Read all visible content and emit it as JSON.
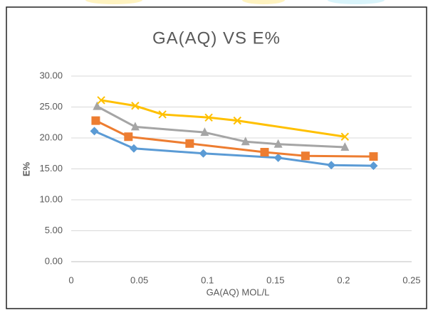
{
  "chart_data": {
    "type": "scatter-line",
    "title": "GA(AQ) VS E%",
    "x_label": "GA(AQ) MOL/L",
    "y_label": "E%",
    "xlim": [
      0,
      0.25
    ],
    "xticks": [
      0,
      0.05,
      0.1,
      0.15,
      0.2,
      0.25
    ],
    "ylim": [
      0,
      30
    ],
    "yticks": [
      {
        "value": 0,
        "label": "0.00"
      },
      {
        "value": 5,
        "label": "5.00"
      },
      {
        "value": 10,
        "label": "10.00"
      },
      {
        "value": 15,
        "label": "15.00"
      },
      {
        "value": 20,
        "label": "20.00"
      },
      {
        "value": 25,
        "label": "25.00"
      },
      {
        "value": 30,
        "label": "30.00"
      }
    ],
    "grid": true,
    "series": [
      {
        "color": "#5b9bd5",
        "marker": "diamond",
        "x": [
          0.017,
          0.046,
          0.097,
          0.152,
          0.191,
          0.222
        ],
        "values": [
          21.1,
          18.3,
          17.5,
          16.8,
          15.6,
          15.5
        ]
      },
      {
        "color": "#ed7d31",
        "marker": "square",
        "x": [
          0.018,
          0.042,
          0.087,
          0.142,
          0.172,
          0.222
        ],
        "values": [
          22.8,
          20.2,
          19.1,
          17.7,
          17.1,
          17.0
        ]
      },
      {
        "color": "#a5a5a5",
        "marker": "triangle",
        "x": [
          0.019,
          0.047,
          0.098,
          0.128,
          0.152,
          0.201
        ],
        "values": [
          25.1,
          21.8,
          20.9,
          19.4,
          19.0,
          18.5
        ]
      },
      {
        "color": "#ffc000",
        "marker": "x",
        "x": [
          0.022,
          0.047,
          0.067,
          0.101,
          0.122,
          0.201
        ],
        "values": [
          26.1,
          25.2,
          23.8,
          23.3,
          22.8,
          20.2
        ]
      }
    ]
  }
}
